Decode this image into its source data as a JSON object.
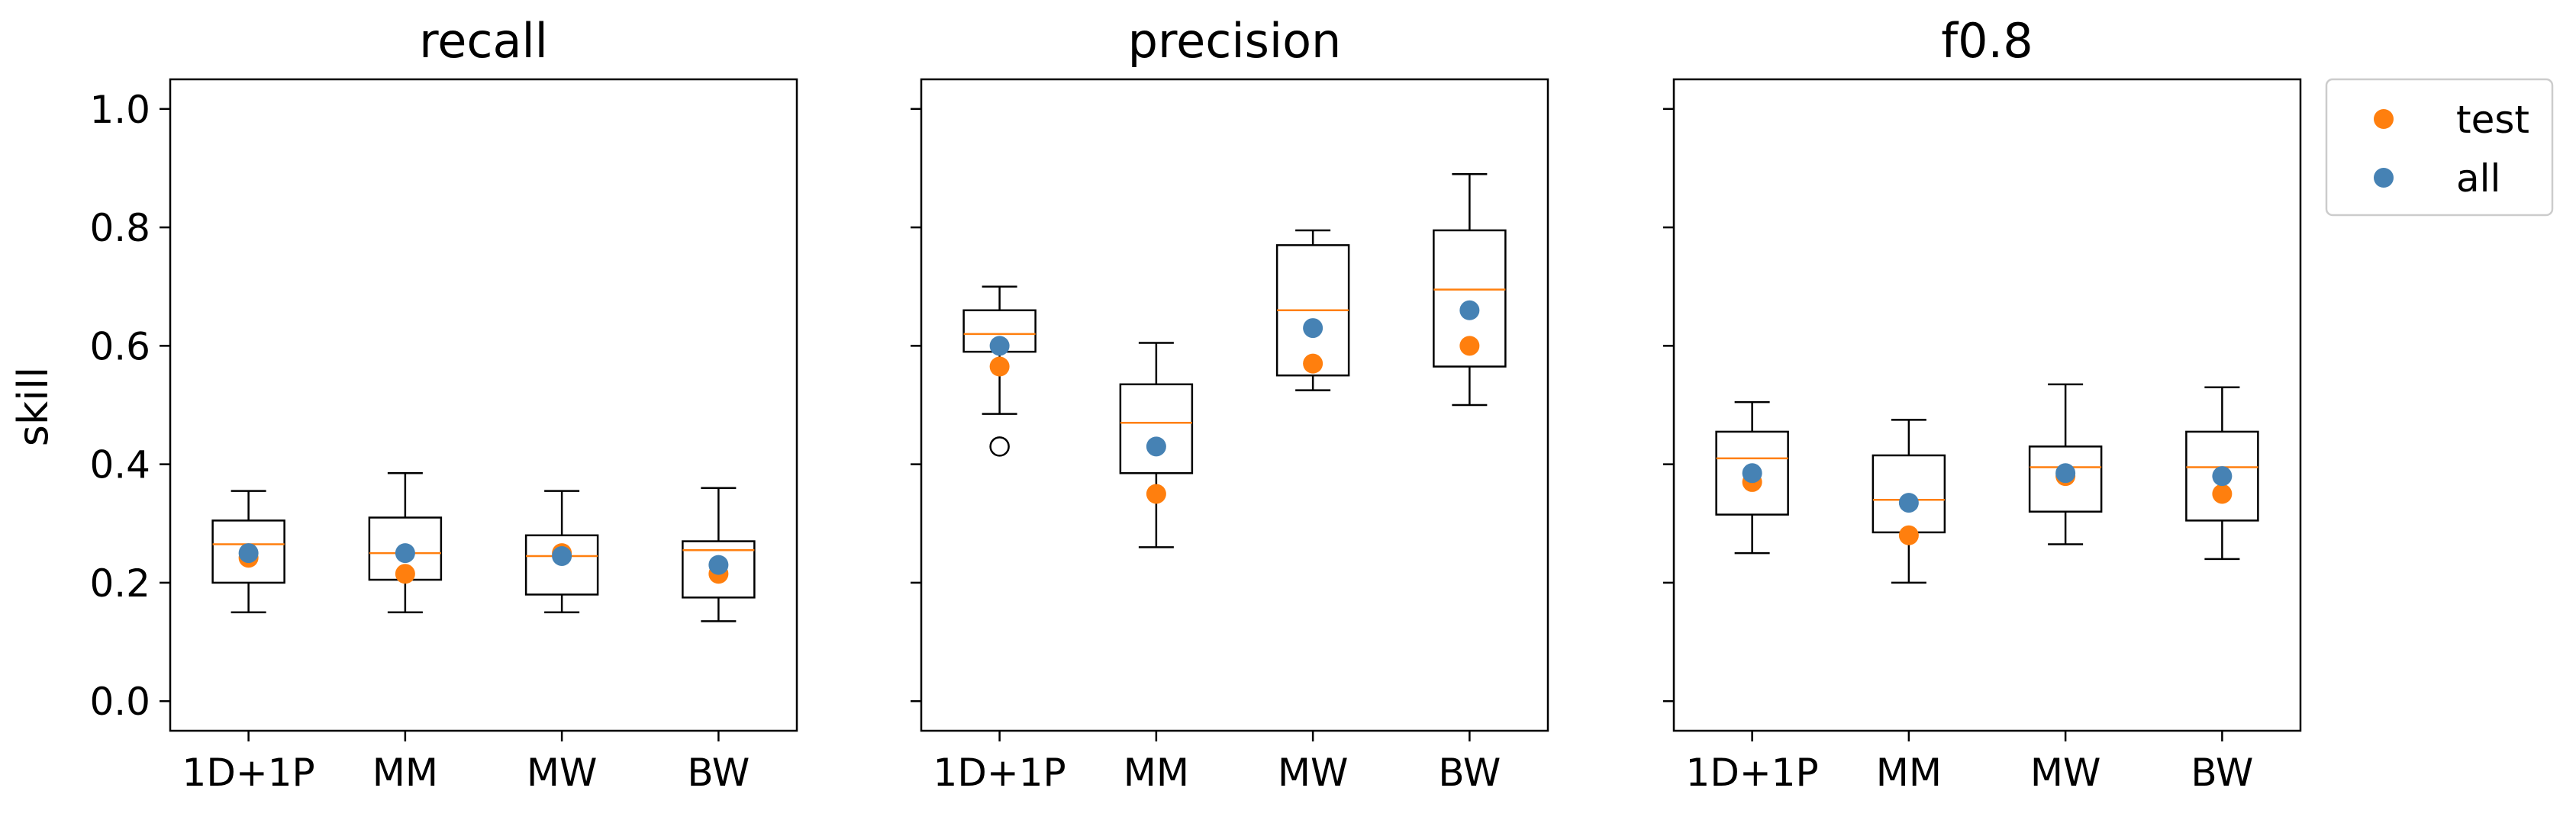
{
  "figure": {
    "ylabel": "skill",
    "yticks": [
      "0.0",
      "0.2",
      "0.4",
      "0.6",
      "0.8",
      "1.0"
    ],
    "legend": {
      "placement": "upper-right-outside",
      "entries": [
        {
          "label": "test",
          "color": "#ff7f0e"
        },
        {
          "label": "all",
          "color": "#4682b4"
        }
      ]
    }
  },
  "colors": {
    "box": "#000000",
    "median": "#ff7f0e",
    "test": "#ff7f0e",
    "all": "#4682b4"
  },
  "chart_data": [
    {
      "type": "box",
      "title": "recall",
      "categories": [
        "1D+1P",
        "MM",
        "MW",
        "BW"
      ],
      "ylim": [
        -0.05,
        1.05
      ],
      "boxes": [
        {
          "whislo": 0.15,
          "q1": 0.2,
          "med": 0.265,
          "q3": 0.305,
          "whishi": 0.355,
          "fliers": []
        },
        {
          "whislo": 0.15,
          "q1": 0.205,
          "med": 0.25,
          "q3": 0.31,
          "whishi": 0.385,
          "fliers": []
        },
        {
          "whislo": 0.15,
          "q1": 0.18,
          "med": 0.245,
          "q3": 0.28,
          "whishi": 0.355,
          "fliers": []
        },
        {
          "whislo": 0.135,
          "q1": 0.175,
          "med": 0.255,
          "q3": 0.27,
          "whishi": 0.36,
          "fliers": []
        }
      ],
      "series": [
        {
          "name": "test",
          "values": [
            0.242,
            0.215,
            0.25,
            0.215
          ]
        },
        {
          "name": "all",
          "values": [
            0.25,
            0.25,
            0.245,
            0.23
          ]
        }
      ]
    },
    {
      "type": "box",
      "title": "precision",
      "categories": [
        "1D+1P",
        "MM",
        "MW",
        "BW"
      ],
      "ylim": [
        -0.05,
        1.05
      ],
      "boxes": [
        {
          "whislo": 0.485,
          "q1": 0.59,
          "med": 0.62,
          "q3": 0.66,
          "whishi": 0.7,
          "fliers": [
            0.43
          ]
        },
        {
          "whislo": 0.26,
          "q1": 0.385,
          "med": 0.47,
          "q3": 0.535,
          "whishi": 0.605,
          "fliers": []
        },
        {
          "whislo": 0.525,
          "q1": 0.55,
          "med": 0.66,
          "q3": 0.77,
          "whishi": 0.795,
          "fliers": []
        },
        {
          "whislo": 0.5,
          "q1": 0.565,
          "med": 0.695,
          "q3": 0.795,
          "whishi": 0.89,
          "fliers": []
        }
      ],
      "series": [
        {
          "name": "test",
          "values": [
            0.565,
            0.35,
            0.57,
            0.6
          ]
        },
        {
          "name": "all",
          "values": [
            0.6,
            0.43,
            0.63,
            0.66
          ]
        }
      ]
    },
    {
      "type": "box",
      "title": "f0.8",
      "categories": [
        "1D+1P",
        "MM",
        "MW",
        "BW"
      ],
      "ylim": [
        -0.05,
        1.05
      ],
      "boxes": [
        {
          "whislo": 0.25,
          "q1": 0.315,
          "med": 0.41,
          "q3": 0.455,
          "whishi": 0.505,
          "fliers": []
        },
        {
          "whislo": 0.2,
          "q1": 0.285,
          "med": 0.34,
          "q3": 0.415,
          "whishi": 0.475,
          "fliers": []
        },
        {
          "whislo": 0.265,
          "q1": 0.32,
          "med": 0.395,
          "q3": 0.43,
          "whishi": 0.535,
          "fliers": []
        },
        {
          "whislo": 0.24,
          "q1": 0.305,
          "med": 0.395,
          "q3": 0.455,
          "whishi": 0.53,
          "fliers": []
        }
      ],
      "series": [
        {
          "name": "test",
          "values": [
            0.37,
            0.28,
            0.38,
            0.35
          ]
        },
        {
          "name": "all",
          "values": [
            0.385,
            0.335,
            0.385,
            0.38
          ]
        }
      ]
    }
  ]
}
